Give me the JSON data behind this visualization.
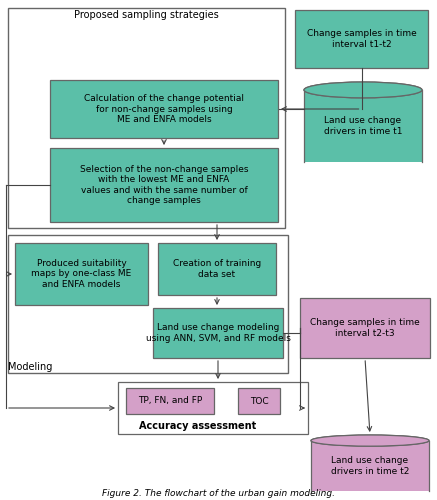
{
  "title": "Figure 2. The flowchart of the urban gain modeling.",
  "green_color": "#5BBFA8",
  "pink_color": "#D4A0C8",
  "white_box": "#FFFFFF",
  "border_color": "#666666",
  "bg_color": "#FFFFFF",
  "boxes": {
    "proposed_label": "Proposed sampling strategies",
    "change_t1t2": "Change samples in time\ninterval t1-t2",
    "calc_change": "Calculation of the change potential\nfor non-change samples using\nME and ENFA models",
    "land_drivers_t1": "Land use change\ndrivers in time t1",
    "selection": "Selection of the non-change samples\nwith the lowest ME and ENFA\nvalues and with the same number of\nchange samples",
    "produced": "Produced suitability\nmaps by one-class ME\nand ENFA models",
    "creation": "Creation of training\ndata set",
    "modeling_label": "Modeling",
    "land_use_modeling": "Land use change modeling\nusing ANN, SVM, and RF models",
    "change_t2t3": "Change samples in time\ninterval t2-t3",
    "tp_fn_fp": "TP, FN, and FP",
    "toc": "TOC",
    "accuracy": "Accuracy assessment",
    "land_drivers_t2": "Land use change\ndrivers in time t2"
  }
}
